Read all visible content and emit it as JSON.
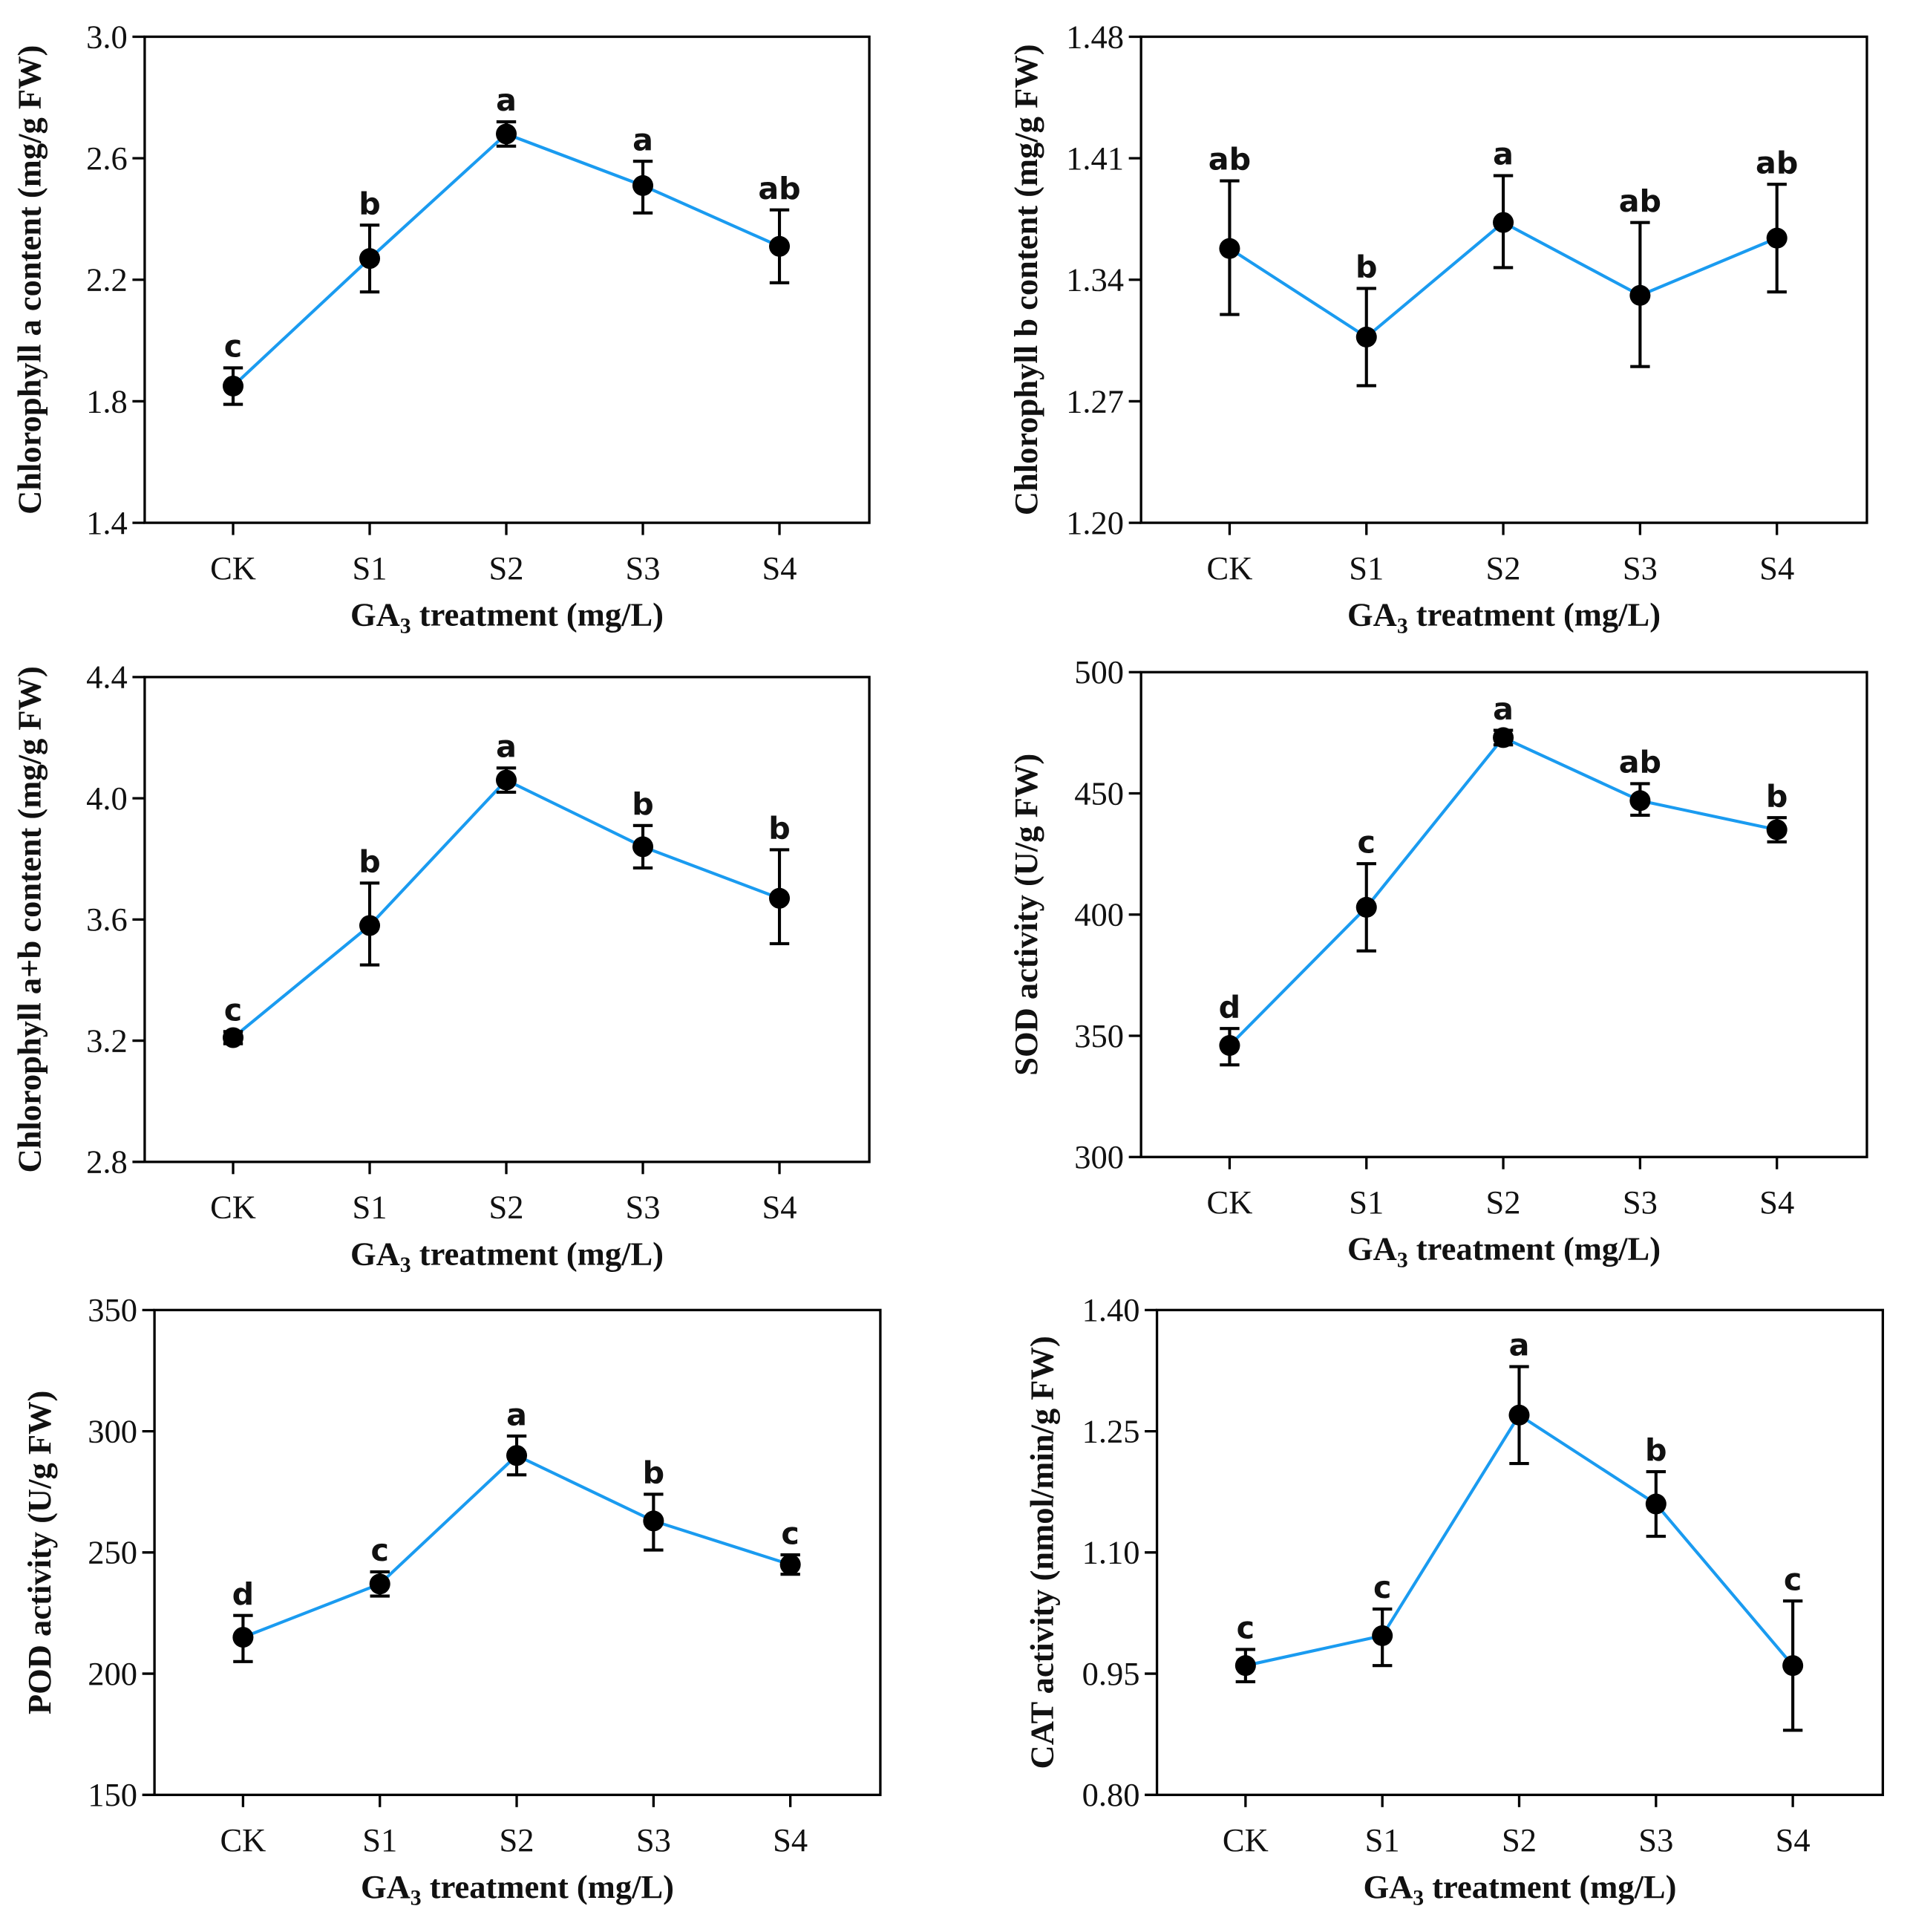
{
  "colors": {
    "line": "#1a9bf0",
    "marker": "#000000",
    "axis": "#000000"
  },
  "chart_data": [
    {
      "type": "line",
      "panel": "chlorophyll-a",
      "ylabel": "Chlorophyll a content (mg/g FW)",
      "xlabel_main": "GA",
      "xlabel_sub": "3",
      "xlabel_rest": " treatment (mg/L)",
      "categories": [
        "CK",
        "S1",
        "S2",
        "S3",
        "S4"
      ],
      "ylim": [
        1.4,
        3.0
      ],
      "yticks": [
        "1.4",
        "1.8",
        "2.2",
        "2.6",
        "3.0"
      ],
      "values": [
        1.85,
        2.27,
        2.68,
        2.51,
        2.31
      ],
      "err_low": [
        1.79,
        2.16,
        2.64,
        2.42,
        2.19
      ],
      "err_high": [
        1.91,
        2.38,
        2.72,
        2.59,
        2.43
      ],
      "letters": [
        "c",
        "b",
        "a",
        "a",
        "ab"
      ]
    },
    {
      "type": "line",
      "panel": "chlorophyll-b",
      "ylabel": "Chlorophyll b content (mg/g FW)",
      "xlabel_main": "GA",
      "xlabel_sub": "3",
      "xlabel_rest": " treatment (mg/L)",
      "categories": [
        "CK",
        "S1",
        "S2",
        "S3",
        "S4"
      ],
      "ylim": [
        1.2,
        1.48
      ],
      "yticks": [
        "1.20",
        "1.27",
        "1.34",
        "1.41",
        "1.48"
      ],
      "values": [
        1.358,
        1.307,
        1.373,
        1.331,
        1.364
      ],
      "err_low": [
        1.32,
        1.279,
        1.347,
        1.29,
        1.333
      ],
      "err_high": [
        1.397,
        1.335,
        1.4,
        1.373,
        1.395
      ],
      "letters": [
        "ab",
        "b",
        "a",
        "ab",
        "ab"
      ]
    },
    {
      "type": "line",
      "panel": "chlorophyll-ab",
      "ylabel": "Chlorophyll a+b content (mg/g FW)",
      "xlabel_main": "GA",
      "xlabel_sub": "3",
      "xlabel_rest": " treatment (mg/L)",
      "categories": [
        "CK",
        "S1",
        "S2",
        "S3",
        "S4"
      ],
      "ylim": [
        2.8,
        4.4
      ],
      "yticks": [
        "2.8",
        "3.2",
        "3.6",
        "4.0",
        "4.4"
      ],
      "values": [
        3.21,
        3.58,
        4.06,
        3.84,
        3.67
      ],
      "err_low": [
        3.19,
        3.45,
        4.02,
        3.77,
        3.52
      ],
      "err_high": [
        3.23,
        3.72,
        4.1,
        3.91,
        3.83
      ],
      "letters": [
        "c",
        "b",
        "a",
        "b",
        "b"
      ]
    },
    {
      "type": "line",
      "panel": "sod",
      "ylabel": "SOD activity (U/g FW)",
      "xlabel_main": "GA",
      "xlabel_sub": "3",
      "xlabel_rest": " treatment (mg/L)",
      "categories": [
        "CK",
        "S1",
        "S2",
        "S3",
        "S4"
      ],
      "ylim": [
        300,
        500
      ],
      "yticks": [
        "300",
        "350",
        "400",
        "450",
        "500"
      ],
      "values": [
        346,
        403,
        473,
        447,
        435
      ],
      "err_low": [
        338,
        385,
        470,
        441,
        430
      ],
      "err_high": [
        353,
        421,
        476,
        454,
        440
      ],
      "letters": [
        "d",
        "c",
        "a",
        "ab",
        "b"
      ]
    },
    {
      "type": "line",
      "panel": "pod",
      "ylabel": "POD activity (U/g FW)",
      "xlabel_main": "GA",
      "xlabel_sub": "3",
      "xlabel_rest": " treatment (mg/L)",
      "categories": [
        "CK",
        "S1",
        "S2",
        "S3",
        "S4"
      ],
      "ylim": [
        150,
        350
      ],
      "yticks": [
        "150",
        "200",
        "250",
        "300",
        "350"
      ],
      "values": [
        215,
        237,
        290,
        263,
        245
      ],
      "err_low": [
        205,
        232,
        282,
        251,
        241
      ],
      "err_high": [
        224,
        242,
        298,
        274,
        249
      ],
      "letters": [
        "d",
        "c",
        "a",
        "b",
        "c"
      ]
    },
    {
      "type": "line",
      "panel": "cat",
      "ylabel": "CAT activity (nmol/min/g FW)",
      "xlabel_main": "GA",
      "xlabel_sub": "3",
      "xlabel_rest": " treatment (mg/L)",
      "categories": [
        "CK",
        "S1",
        "S2",
        "S3",
        "S4"
      ],
      "ylim": [
        0.8,
        1.4
      ],
      "yticks": [
        "0.80",
        "0.95",
        "1.10",
        "1.25",
        "1.40"
      ],
      "values": [
        0.96,
        0.997,
        1.27,
        1.16,
        0.96
      ],
      "err_low": [
        0.94,
        0.96,
        1.21,
        1.12,
        0.88
      ],
      "err_high": [
        0.98,
        1.03,
        1.33,
        1.2,
        1.04
      ],
      "letters": [
        "c",
        "c",
        "a",
        "b",
        "c"
      ]
    }
  ]
}
